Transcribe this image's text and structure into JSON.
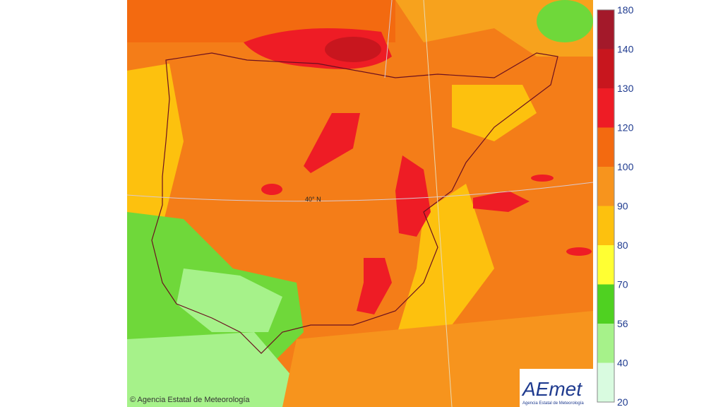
{
  "legend": {
    "labels": [
      180,
      140,
      130,
      120,
      100,
      90,
      80,
      70,
      56,
      40,
      20
    ],
    "colors": [
      "#a3192a",
      "#c8161e",
      "#ee1c25",
      "#f36a10",
      "#f7941d",
      "#fdc10e",
      "#ffff33",
      "#4fd121",
      "#a6f28a",
      "#d9fbe0"
    ]
  },
  "map": {
    "latitude_label": "40° N"
  },
  "footer": {
    "copyright": "© Agencia Estatal de Meteorología"
  },
  "logo": {
    "name": "AEmet",
    "subtitle": "Agencia Estatal de Meteorología"
  }
}
